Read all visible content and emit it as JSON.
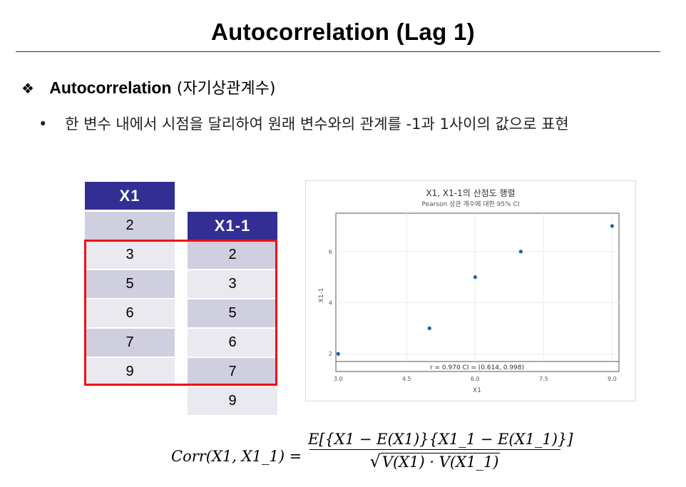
{
  "title": "Autocorrelation (Lag 1)",
  "section": {
    "bullet_icon": "diamond-cluster-icon",
    "heading_en": "Autocorrelation",
    "heading_ko": "(자기상관계수)"
  },
  "bullet_text": "한 변수 내에서 시점을 달리하여 원래 변수와의 관계를 -1과 1사이의 값으로 표현",
  "table": {
    "x1_header": "X1",
    "x1_values": [
      "2",
      "3",
      "5",
      "6",
      "7",
      "9"
    ],
    "x1_lag_header": "X1-1",
    "x1_lag_values": [
      "2",
      "3",
      "5",
      "6",
      "7",
      "9"
    ]
  },
  "chart_data": {
    "type": "scatter",
    "title": "X1, X1-1의 산점도 행렬",
    "subtitle": "Pearson 상관 계수에 대한 95% CI",
    "xlabel": "X1",
    "ylabel": "X1-1",
    "x": [
      3,
      5,
      6,
      7,
      9
    ],
    "y": [
      2,
      3,
      5,
      6,
      7
    ],
    "xlim": [
      2.95,
      9.15
    ],
    "ylim": [
      1.7,
      7.5
    ],
    "xticks": [
      "3.0",
      "4.5",
      "6.0",
      "7.5",
      "9.0"
    ],
    "yticks": [
      "2",
      "4",
      "6"
    ],
    "annotation": "r = 0.970  CI = (0.614, 0.998)",
    "grid": true,
    "point_color": "#1f5fa8"
  },
  "formula": {
    "lhs": "Corr(X1, X1_1) =",
    "numerator": "E[{X1 − E(X1)}{X1_1 − E(X1_1)}]",
    "denominator": "V(X1) · V(X1_1)"
  },
  "colors": {
    "header_bg": "#322e93",
    "cell_dark": "#cfcfdf",
    "cell_light": "#e9e9ef",
    "highlight_border": "#ee1111"
  }
}
